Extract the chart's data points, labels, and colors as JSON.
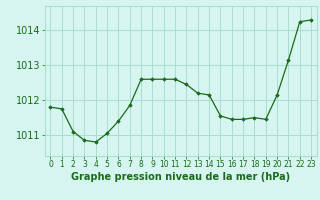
{
  "x": [
    0,
    1,
    2,
    3,
    4,
    5,
    6,
    7,
    8,
    9,
    10,
    11,
    12,
    13,
    14,
    15,
    16,
    17,
    18,
    19,
    20,
    21,
    22,
    23
  ],
  "y": [
    1011.8,
    1011.75,
    1011.1,
    1010.85,
    1010.8,
    1011.05,
    1011.4,
    1011.85,
    1012.6,
    1012.6,
    1012.6,
    1012.6,
    1012.45,
    1012.2,
    1012.15,
    1011.55,
    1011.45,
    1011.45,
    1011.5,
    1011.45,
    1012.15,
    1013.15,
    1014.25,
    1014.3
  ],
  "line_color": "#1a6b1a",
  "marker": "D",
  "marker_size": 1.8,
  "bg_color": "#d6f5f0",
  "grid_color": "#aaddcc",
  "xlabel": "Graphe pression niveau de la mer (hPa)",
  "xlabel_fontsize": 7,
  "xlabel_color": "#1a6b1a",
  "yticks": [
    1011,
    1012,
    1013,
    1014
  ],
  "ylim": [
    1010.4,
    1014.7
  ],
  "xlim": [
    -0.5,
    23.5
  ],
  "xtick_labels": [
    "0",
    "1",
    "2",
    "3",
    "4",
    "5",
    "6",
    "7",
    "8",
    "9",
    "10",
    "11",
    "12",
    "13",
    "14",
    "15",
    "16",
    "17",
    "18",
    "19",
    "20",
    "21",
    "22",
    "23"
  ],
  "tick_color": "#1a6b1a",
  "ytick_fontsize": 7,
  "xtick_fontsize": 5.5
}
